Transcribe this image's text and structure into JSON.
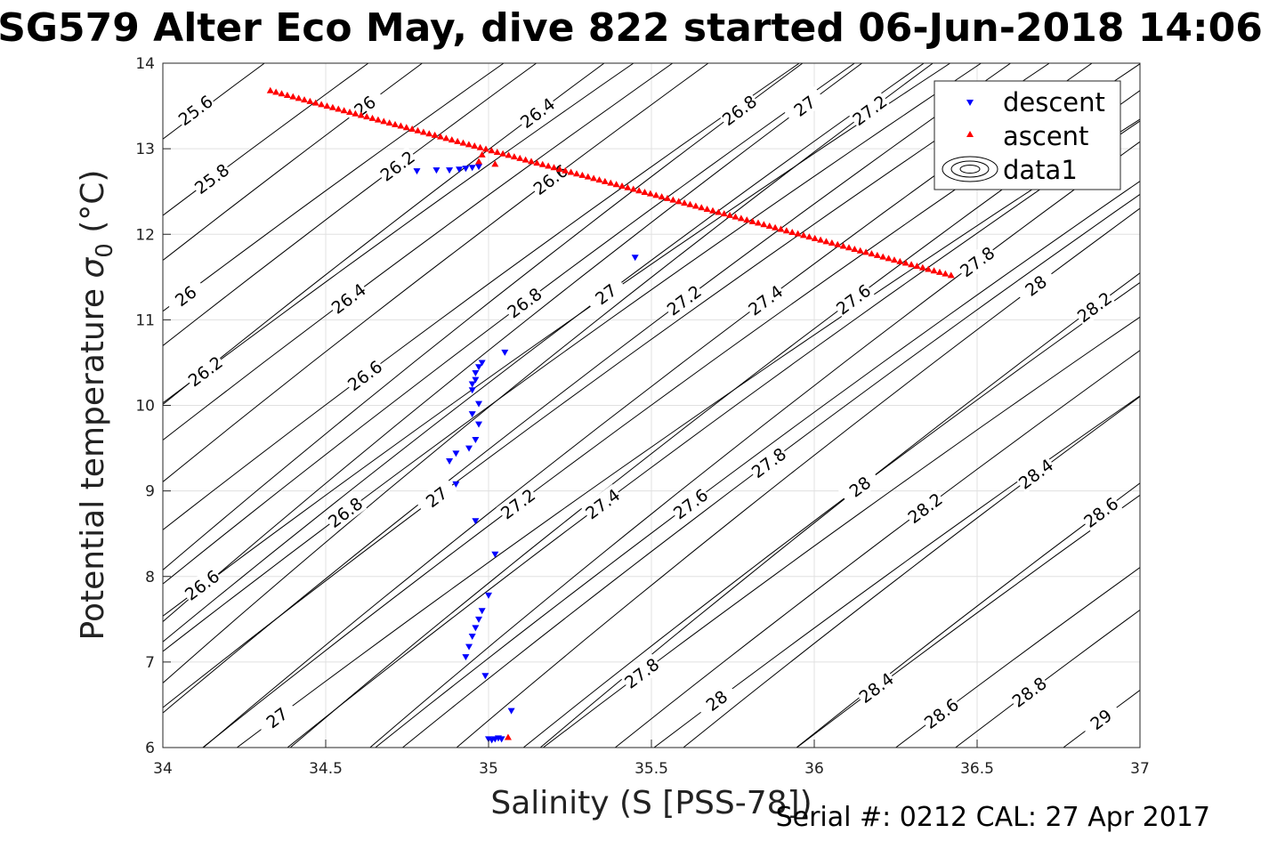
{
  "chart_data": {
    "type": "scatter",
    "title": "SG579 Alter Eco May, dive 822 started 06-Jun-2018 14:06",
    "xlabel": "Salinity (S [PSS-78])",
    "ylabel_main": "Potential temperature ",
    "ylabel_symbol": "σ",
    "ylabel_sub": "0",
    "ylabel_unit": " (°C)",
    "xlim": [
      34,
      37
    ],
    "ylim": [
      6,
      14
    ],
    "x_ticks": [
      34,
      34.5,
      35,
      35.5,
      36,
      36.5,
      37
    ],
    "x_tick_labels": [
      "34",
      "34.5",
      "35",
      "35.5",
      "36",
      "36.5",
      "37"
    ],
    "y_ticks": [
      6,
      7,
      8,
      9,
      10,
      11,
      12,
      13,
      14
    ],
    "y_tick_labels": [
      "6",
      "7",
      "8",
      "9",
      "10",
      "11",
      "12",
      "13",
      "14"
    ],
    "grid": true,
    "legend_position": "top-right",
    "footer": "Serial #: 0212  CAL: 27 Apr 2017",
    "colors": {
      "descent": "#0000ff",
      "ascent": "#ff0000",
      "contour": "#000000",
      "grid": "#e0e0e0"
    },
    "series": [
      {
        "name": "descent",
        "marker": "triangle-down",
        "color": "#0000ff",
        "points": [
          [
            34.78,
            12.74
          ],
          [
            34.84,
            12.75
          ],
          [
            34.88,
            12.75
          ],
          [
            34.91,
            12.76
          ],
          [
            34.93,
            12.77
          ],
          [
            34.95,
            12.78
          ],
          [
            34.97,
            12.79
          ],
          [
            35.45,
            11.73
          ],
          [
            35.05,
            10.62
          ],
          [
            34.98,
            10.5
          ],
          [
            34.97,
            10.45
          ],
          [
            34.96,
            10.38
          ],
          [
            34.96,
            10.3
          ],
          [
            34.95,
            10.25
          ],
          [
            34.95,
            10.18
          ],
          [
            34.97,
            10.02
          ],
          [
            34.95,
            9.9
          ],
          [
            34.97,
            9.78
          ],
          [
            34.96,
            9.6
          ],
          [
            34.94,
            9.5
          ],
          [
            34.9,
            9.44
          ],
          [
            34.88,
            9.35
          ],
          [
            34.9,
            9.08
          ],
          [
            34.96,
            8.65
          ],
          [
            35.02,
            8.26
          ],
          [
            35.0,
            7.78
          ],
          [
            34.98,
            7.6
          ],
          [
            34.97,
            7.5
          ],
          [
            34.96,
            7.4
          ],
          [
            34.95,
            7.3
          ],
          [
            34.94,
            7.18
          ],
          [
            34.93,
            7.06
          ],
          [
            34.99,
            6.84
          ],
          [
            35.07,
            6.43
          ],
          [
            35.0,
            6.1
          ],
          [
            35.01,
            6.09
          ],
          [
            35.02,
            6.1
          ],
          [
            35.03,
            6.11
          ],
          [
            35.04,
            6.1
          ]
        ]
      },
      {
        "name": "ascent",
        "marker": "triangle-up",
        "color": "#ff0000",
        "points": [
          [
            34.33,
            13.68
          ],
          [
            36.42,
            11.52
          ],
          [
            34.97,
            12.85
          ],
          [
            34.98,
            12.93
          ],
          [
            35.02,
            12.82
          ],
          [
            35.06,
            6.12
          ]
        ]
      },
      {
        "name": "data1",
        "marker": "contour",
        "color": "#000000",
        "points": []
      }
    ],
    "contours": [
      {
        "label": "25.6",
        "x": 34.1,
        "y": 13.4,
        "label_x": 34.1,
        "label_y": 13.45
      },
      {
        "label": "25.8",
        "x": 34.15,
        "y": 12.65,
        "label_x": 34.15,
        "label_y": 12.65
      },
      {
        "label": "26",
        "x": 34.07,
        "y": 11.3,
        "label_x": 34.07,
        "label_y": 11.28
      },
      {
        "label": "26.2",
        "x": 34.13,
        "y": 10.4,
        "label_x": 34.13,
        "label_y": 10.4
      },
      {
        "label": "26.6",
        "x": 34.12,
        "y": 7.88,
        "label_x": 34.12,
        "label_y": 7.9
      },
      {
        "label": "27",
        "x": 34.35,
        "y": 6.35,
        "label_x": 34.35,
        "label_y": 6.35
      },
      {
        "label": "26",
        "x": 34.62,
        "y": 13.5,
        "label_x": 34.62,
        "label_y": 13.5
      },
      {
        "label": "26.2",
        "x": 34.72,
        "y": 12.8,
        "label_x": 34.72,
        "label_y": 12.8
      },
      {
        "label": "26.4",
        "x": 34.57,
        "y": 11.25,
        "label_x": 34.57,
        "label_y": 11.25
      },
      {
        "label": "26.6",
        "x": 34.62,
        "y": 10.35,
        "label_x": 34.62,
        "label_y": 10.35
      },
      {
        "label": "26.8",
        "x": 34.56,
        "y": 8.75,
        "label_x": 34.56,
        "label_y": 8.75
      },
      {
        "label": "27",
        "x": 34.84,
        "y": 8.93,
        "label_x": 34.84,
        "label_y": 8.93
      },
      {
        "label": "26.4",
        "x": 35.15,
        "y": 13.42,
        "label_x": 35.15,
        "label_y": 13.42
      },
      {
        "label": "26.6",
        "x": 35.19,
        "y": 12.64,
        "label_x": 35.19,
        "label_y": 12.64
      },
      {
        "label": "26.8",
        "x": 35.11,
        "y": 11.2,
        "label_x": 35.11,
        "label_y": 11.2
      },
      {
        "label": "27.2",
        "x": 35.09,
        "y": 8.85,
        "label_x": 35.09,
        "label_y": 8.85
      },
      {
        "label": "27",
        "x": 35.36,
        "y": 11.3,
        "label_x": 35.36,
        "label_y": 11.3
      },
      {
        "label": "27.4",
        "x": 35.35,
        "y": 8.85,
        "label_x": 35.35,
        "label_y": 8.85
      },
      {
        "label": "27.8",
        "x": 35.47,
        "y": 6.87,
        "label_x": 35.47,
        "label_y": 6.87
      },
      {
        "label": "26.8",
        "x": 35.77,
        "y": 13.45,
        "label_x": 35.77,
        "label_y": 13.45
      },
      {
        "label": "27.2",
        "x": 35.6,
        "y": 11.23,
        "label_x": 35.6,
        "label_y": 11.23
      },
      {
        "label": "27.6",
        "x": 35.62,
        "y": 8.85,
        "label_x": 35.62,
        "label_y": 8.85
      },
      {
        "label": "28",
        "x": 35.7,
        "y": 6.55,
        "label_x": 35.7,
        "label_y": 6.55
      },
      {
        "label": "27",
        "x": 35.97,
        "y": 13.5,
        "label_x": 35.97,
        "label_y": 13.5
      },
      {
        "label": "27.4",
        "x": 35.85,
        "y": 11.23,
        "label_x": 35.85,
        "label_y": 11.23
      },
      {
        "label": "27.8",
        "x": 35.86,
        "y": 9.33,
        "label_x": 35.86,
        "label_y": 9.33
      },
      {
        "label": "27.2",
        "x": 36.17,
        "y": 13.45,
        "label_x": 36.17,
        "label_y": 13.45
      },
      {
        "label": "27.6",
        "x": 36.12,
        "y": 11.24,
        "label_x": 36.12,
        "label_y": 11.24
      },
      {
        "label": "28",
        "x": 36.14,
        "y": 9.05,
        "label_x": 36.14,
        "label_y": 9.05
      },
      {
        "label": "28.4",
        "x": 36.19,
        "y": 6.7,
        "label_x": 36.19,
        "label_y": 6.7
      },
      {
        "label": "27.8",
        "x": 36.5,
        "y": 11.68,
        "label_x": 36.5,
        "label_y": 11.68
      },
      {
        "label": "28.2",
        "x": 36.34,
        "y": 8.8,
        "label_x": 36.34,
        "label_y": 8.8
      },
      {
        "label": "28.6",
        "x": 36.39,
        "y": 6.4,
        "label_x": 36.39,
        "label_y": 6.4
      },
      {
        "label": "28",
        "x": 36.68,
        "y": 11.4,
        "label_x": 36.68,
        "label_y": 11.4
      },
      {
        "label": "28.4",
        "x": 36.68,
        "y": 9.2,
        "label_x": 36.68,
        "label_y": 9.2
      },
      {
        "label": "28.8",
        "x": 36.66,
        "y": 6.65,
        "label_x": 36.66,
        "label_y": 6.65
      },
      {
        "label": "28.2",
        "x": 36.86,
        "y": 11.15,
        "label_x": 36.86,
        "label_y": 11.15
      },
      {
        "label": "28.6",
        "x": 36.88,
        "y": 8.75,
        "label_x": 36.88,
        "label_y": 8.75
      },
      {
        "label": "29",
        "x": 36.88,
        "y": 6.33,
        "label_x": 36.88,
        "label_y": 6.33
      }
    ]
  }
}
